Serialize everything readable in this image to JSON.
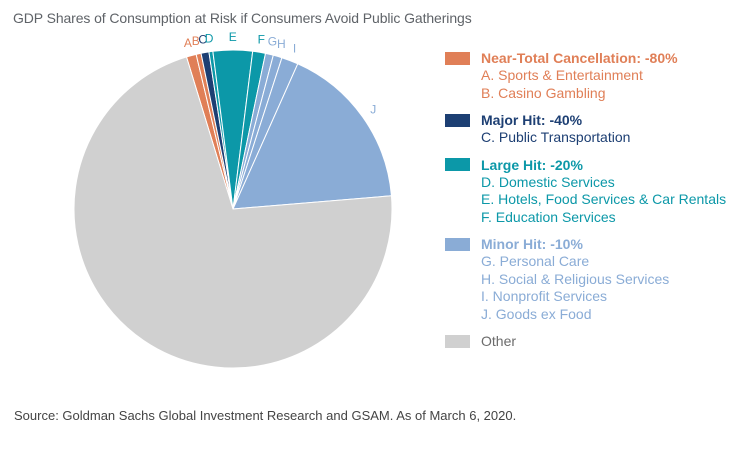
{
  "chart_data": {
    "type": "pie",
    "title": "GDP Shares of Consumption at Risk if Consumers Avoid Public Gatherings",
    "slices": [
      {
        "letter": "A",
        "label": "Sports & Entertainment",
        "value": 1.0,
        "group": 0
      },
      {
        "letter": "B",
        "label": "Casino Gambling",
        "value": 0.5,
        "group": 0
      },
      {
        "letter": "C",
        "label": "Public Transportation",
        "value": 0.8,
        "group": 1
      },
      {
        "letter": "D",
        "label": "Domestic Services",
        "value": 0.4,
        "group": 2
      },
      {
        "letter": "E",
        "label": "Hotels, Food Services & Car Rentals",
        "value": 4.0,
        "group": 2
      },
      {
        "letter": "F",
        "label": "Education Services",
        "value": 1.3,
        "group": 2
      },
      {
        "letter": "G",
        "label": "Personal Care",
        "value": 0.8,
        "group": 3
      },
      {
        "letter": "H",
        "label": "Social & Religious Services",
        "value": 0.9,
        "group": 3
      },
      {
        "letter": "I",
        "label": "Nonprofit Services",
        "value": 1.7,
        "group": 3
      },
      {
        "letter": "J",
        "label": "Goods ex Food",
        "value": 17.0,
        "group": 3
      },
      {
        "letter": "",
        "label": "Other",
        "value": 71.6,
        "group": 4
      }
    ],
    "groups": [
      {
        "title": "Near-Total Cancellation: -80%",
        "color": "#e07f57",
        "items": [
          "A. Sports & Entertainment",
          "B. Casino Gambling"
        ]
      },
      {
        "title": "Major Hit: -40%",
        "color": "#1d3f73",
        "items": [
          "C. Public Transportation"
        ]
      },
      {
        "title": "Large Hit: -20%",
        "color": "#0c98a8",
        "items": [
          "D. Domestic Services",
          "E. Hotels, Food Services & Car Rentals",
          "F. Education Services"
        ]
      },
      {
        "title": "Minor Hit: -10%",
        "color": "#8aacd6",
        "items": [
          "G. Personal Care",
          "H. Social & Religious Services",
          "I. Nonprofit Services",
          "J. Goods ex Food"
        ]
      },
      {
        "title": "Other",
        "color": "#d0d0d0",
        "items": []
      }
    ],
    "start_angle_deg": -17,
    "direction": "clockwise"
  },
  "source": "Source: Goldman Sachs Global Investment Research and GSAM. As of March 6, 2020."
}
